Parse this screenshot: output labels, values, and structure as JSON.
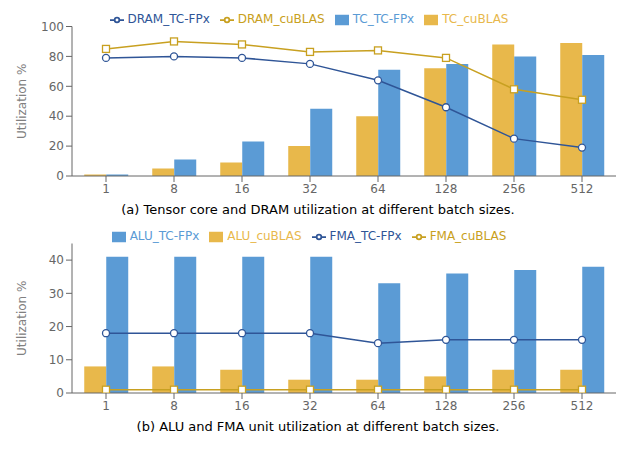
{
  "chart_data": [
    {
      "type": "bar",
      "title": "(a) Tensor core and DRAM utilization at different batch sizes.",
      "categories": [
        "1",
        "8",
        "16",
        "32",
        "64",
        "128",
        "256",
        "512"
      ],
      "y_label": "Utilization %",
      "ylim": [
        0,
        100
      ],
      "yticks": [
        0,
        20,
        40,
        60,
        80,
        100
      ],
      "grid": false,
      "legend": "top",
      "series": [
        {
          "name": "TC_cuBLAS",
          "type": "bar",
          "color": "#E8B84B",
          "values": [
            1,
            5,
            9,
            20,
            40,
            72,
            88,
            89
          ]
        },
        {
          "name": "TC_TC-FPx",
          "type": "bar",
          "color": "#5B9BD5",
          "values": [
            1,
            11,
            23,
            45,
            71,
            75,
            80,
            81
          ]
        },
        {
          "name": "DRAM_cuBLAS",
          "type": "line",
          "marker": "square",
          "color": "#C8A020",
          "values": [
            85,
            90,
            88,
            83,
            84,
            79,
            58,
            51
          ]
        },
        {
          "name": "DRAM_TC-FPx",
          "type": "line",
          "marker": "circle",
          "color": "#2F5597",
          "values": [
            79,
            80,
            79,
            75,
            64,
            46,
            25,
            19
          ]
        }
      ]
    },
    {
      "type": "bar",
      "title": "(b) ALU and FMA unit utilization at different batch sizes.",
      "categories": [
        "1",
        "8",
        "16",
        "32",
        "64",
        "128",
        "256",
        "512"
      ],
      "y_label": "Utilization %",
      "ylim": [
        0,
        45
      ],
      "yticks": [
        0,
        10,
        20,
        30,
        40
      ],
      "grid": false,
      "legend": "top",
      "series": [
        {
          "name": "ALU_cuBLAS",
          "type": "bar",
          "color": "#E8B84B",
          "values": [
            8,
            8,
            7,
            4,
            4,
            5,
            7,
            7
          ]
        },
        {
          "name": "ALU_TC-FPx",
          "type": "bar",
          "color": "#5B9BD5",
          "values": [
            41,
            41,
            41,
            41,
            33,
            36,
            37,
            38
          ]
        },
        {
          "name": "FMA_cuBLAS",
          "type": "line",
          "marker": "square",
          "color": "#C8A020",
          "values": [
            1,
            1,
            1,
            1,
            1,
            1,
            1,
            1
          ]
        },
        {
          "name": "FMA_TC-FPx",
          "type": "line",
          "marker": "circle",
          "color": "#2F5597",
          "values": [
            18,
            18,
            18,
            18,
            15,
            16,
            16,
            16
          ]
        }
      ]
    }
  ]
}
